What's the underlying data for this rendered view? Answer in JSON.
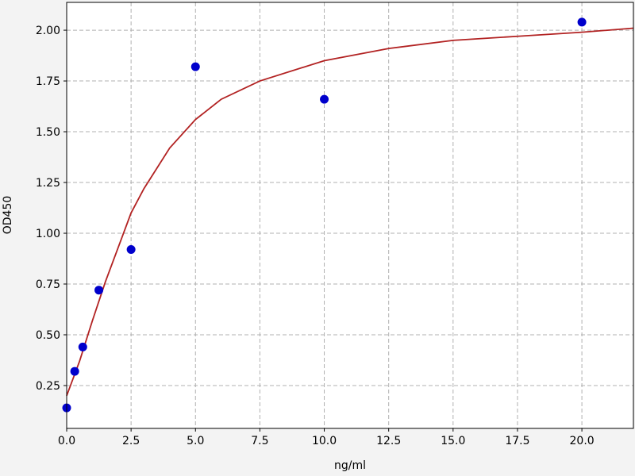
{
  "chart_data": {
    "type": "scatter",
    "x_label": "ng/ml",
    "y_label": "OD450",
    "xlim": [
      0,
      22
    ],
    "ylim": [
      0.039,
      2.137
    ],
    "xticks": [
      {
        "value": 0,
        "label": "0.0"
      },
      {
        "value": 2.5,
        "label": "2.5"
      },
      {
        "value": 5,
        "label": "5.0"
      },
      {
        "value": 7.5,
        "label": "7.5"
      },
      {
        "value": 10,
        "label": "10.0"
      },
      {
        "value": 12.5,
        "label": "12.5"
      },
      {
        "value": 15,
        "label": "15.0"
      },
      {
        "value": 17.5,
        "label": "17.5"
      },
      {
        "value": 20,
        "label": "20.0"
      }
    ],
    "yticks": [
      0.25,
      {
        "value": 0.5,
        "label": "0.50"
      },
      0.75,
      {
        "value": 1,
        "label": "1.00"
      },
      1.25,
      {
        "value": 1.5,
        "label": "1.50"
      },
      1.75,
      {
        "value": 2,
        "label": "2.00"
      }
    ],
    "grid": true,
    "series": [
      {
        "mode": "markers",
        "color": "#0000cc",
        "x": [
          0,
          0.3125,
          0.625,
          1.25,
          2.5,
          5,
          10,
          20
        ],
        "values": [
          0.14,
          0.32,
          0.44,
          0.72,
          0.92,
          1.82,
          1.66,
          2.04
        ]
      },
      {
        "mode": "line",
        "color": "#b22222",
        "x": [
          0,
          0.5,
          1,
          1.5,
          2,
          2.5,
          3,
          4,
          5,
          6,
          7.5,
          10,
          12.5,
          15,
          17.5,
          20,
          22
        ],
        "values": [
          0.2,
          0.37,
          0.57,
          0.76,
          0.93,
          1.1,
          1.22,
          1.42,
          1.56,
          1.66,
          1.75,
          1.85,
          1.91,
          1.95,
          1.97,
          1.99,
          2.01
        ]
      }
    ]
  }
}
